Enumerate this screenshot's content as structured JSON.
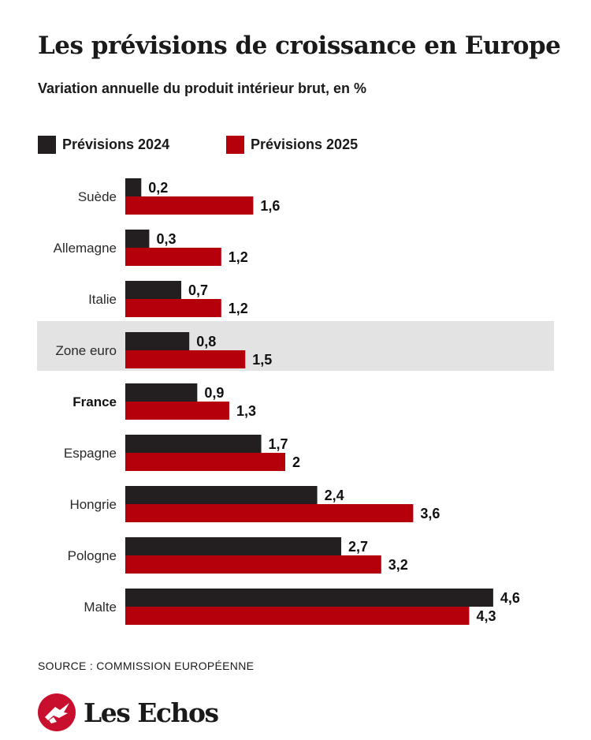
{
  "header": {
    "title": "Les prévisions de croissance en Europe",
    "subtitle": "Variation annuelle du produit intérieur brut, en %"
  },
  "legend": [
    {
      "label": "Prévisions 2024",
      "color": "#231f20"
    },
    {
      "label": "Prévisions 2025",
      "color": "#b5000b"
    }
  ],
  "chart_data": {
    "type": "bar",
    "orientation": "horizontal",
    "title": "Les prévisions de croissance en Europe",
    "subtitle": "Variation annuelle du produit intérieur brut, en %",
    "categories": [
      "Suède",
      "Allemagne",
      "Italie",
      "Zone euro",
      "France",
      "Espagne",
      "Hongrie",
      "Pologne",
      "Malte"
    ],
    "highlight_category": "Zone euro",
    "bold_category": "France",
    "series": [
      {
        "name": "Prévisions 2024",
        "color": "#231f20",
        "values": [
          0.2,
          0.3,
          0.7,
          0.8,
          0.9,
          1.7,
          2.4,
          2.7,
          4.6
        ],
        "labels": [
          "0,2",
          "0,3",
          "0,7",
          "0,8",
          "0,9",
          "1,7",
          "2,4",
          "2,7",
          "4,6"
        ]
      },
      {
        "name": "Prévisions 2025",
        "color": "#b5000b",
        "values": [
          1.6,
          1.2,
          1.2,
          1.5,
          1.3,
          2.0,
          3.6,
          3.2,
          4.3
        ],
        "labels": [
          "1,6",
          "1,2",
          "1,2",
          "1,5",
          "1,3",
          "2",
          "3,6",
          "3,2",
          "4,3"
        ]
      }
    ],
    "xlim": [
      0,
      4.6
    ],
    "grid": false,
    "legend_position": "top-left"
  },
  "footer": {
    "source": "SOURCE : COMMISSION EUROPÉENNE",
    "logo_text": "Les Echos",
    "logo_color": "#c8102e"
  }
}
